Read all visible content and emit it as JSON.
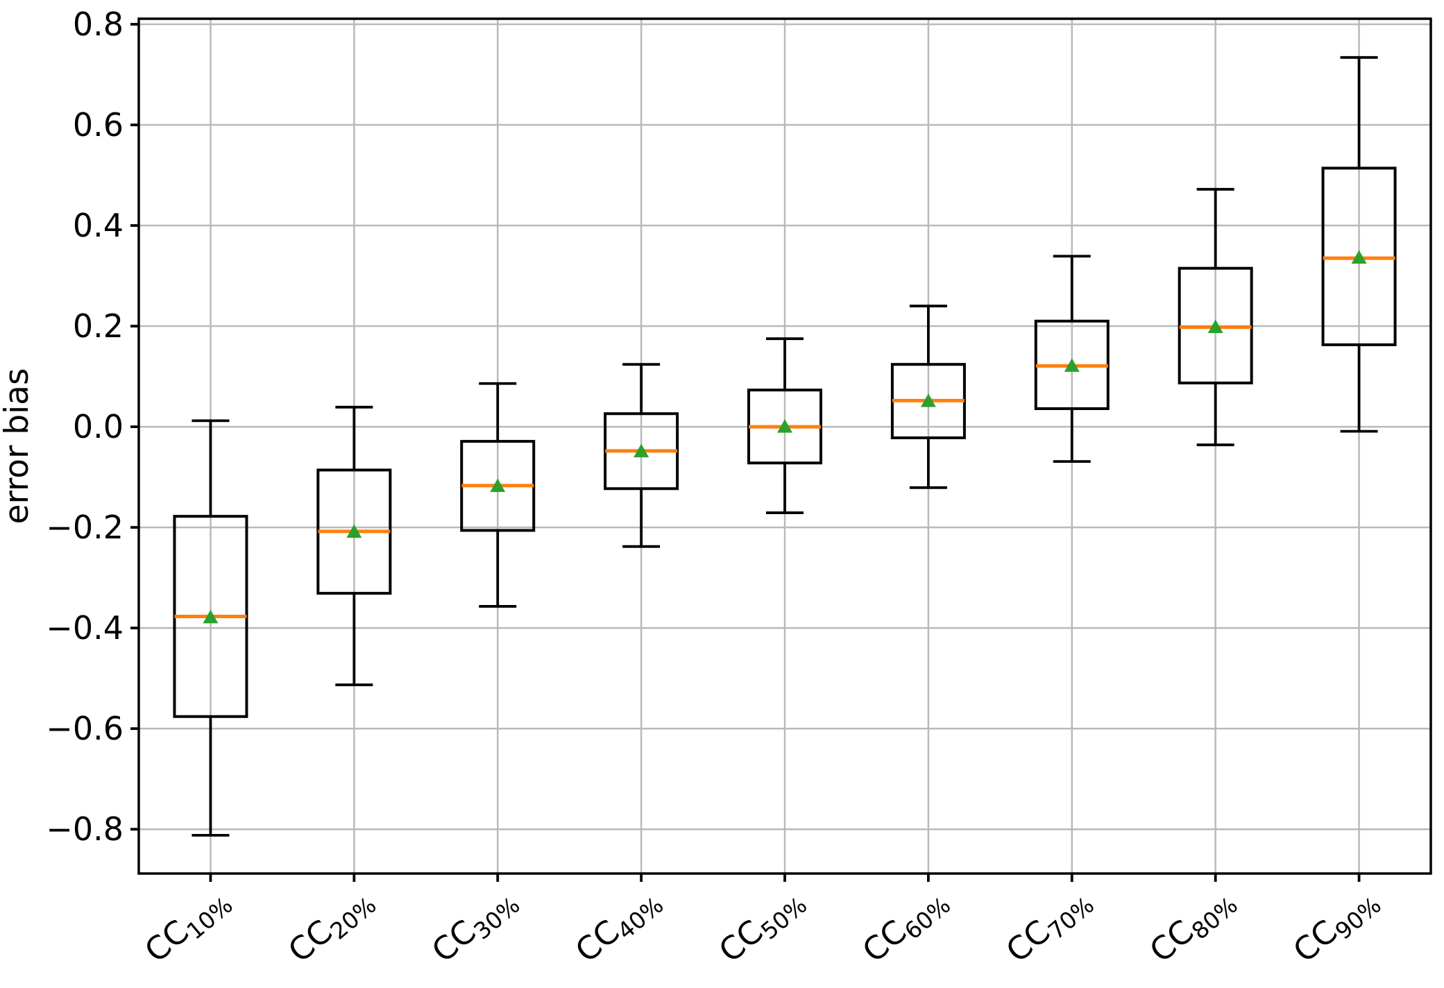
{
  "chart_data": {
    "type": "boxplot",
    "title": "",
    "xlabel": "",
    "ylabel": "error bias",
    "grid": true,
    "legend": "none",
    "ylim": [
      -0.888,
      0.811
    ],
    "yticks": [
      0.8,
      0.6,
      0.4,
      0.2,
      0.0,
      -0.2,
      -0.4,
      -0.6,
      -0.8
    ],
    "ytick_labels": [
      "0.8",
      "0.6",
      "0.4",
      "0.2",
      "0.0",
      "−0.2",
      "−0.4",
      "−0.6",
      "−0.8"
    ],
    "categories": [
      {
        "base": "CC",
        "sub": "10%",
        "label": "CC10%"
      },
      {
        "base": "CC",
        "sub": "20%",
        "label": "CC20%"
      },
      {
        "base": "CC",
        "sub": "30%",
        "label": "CC30%"
      },
      {
        "base": "CC",
        "sub": "40%",
        "label": "CC40%"
      },
      {
        "base": "CC",
        "sub": "50%",
        "label": "CC50%"
      },
      {
        "base": "CC",
        "sub": "60%",
        "label": "CC60%"
      },
      {
        "base": "CC",
        "sub": "70%",
        "label": "CC70%"
      },
      {
        "base": "CC",
        "sub": "80%",
        "label": "CC80%"
      },
      {
        "base": "CC",
        "sub": "90%",
        "label": "CC90%"
      }
    ],
    "series": [
      {
        "label": "CC10%",
        "whislo": -0.812,
        "q1": -0.576,
        "med": -0.377,
        "mean": -0.379,
        "q3": -0.178,
        "whishi": 0.012
      },
      {
        "label": "CC20%",
        "whislo": -0.513,
        "q1": -0.331,
        "med": -0.208,
        "mean": -0.209,
        "q3": -0.086,
        "whishi": 0.039
      },
      {
        "label": "CC30%",
        "whislo": -0.357,
        "q1": -0.206,
        "med": -0.117,
        "mean": -0.118,
        "q3": -0.029,
        "whishi": 0.086
      },
      {
        "label": "CC40%",
        "whislo": -0.238,
        "q1": -0.123,
        "med": -0.048,
        "mean": -0.049,
        "q3": 0.026,
        "whishi": 0.124
      },
      {
        "label": "CC50%",
        "whislo": -0.171,
        "q1": -0.072,
        "med": 0.0,
        "mean": 0.0,
        "q3": 0.073,
        "whishi": 0.175
      },
      {
        "label": "CC60%",
        "whislo": -0.121,
        "q1": -0.022,
        "med": 0.052,
        "mean": 0.051,
        "q3": 0.124,
        "whishi": 0.24
      },
      {
        "label": "CC70%",
        "whislo": -0.069,
        "q1": 0.036,
        "med": 0.121,
        "mean": 0.121,
        "q3": 0.21,
        "whishi": 0.339
      },
      {
        "label": "CC80%",
        "whislo": -0.036,
        "q1": 0.087,
        "med": 0.198,
        "mean": 0.198,
        "q3": 0.315,
        "whishi": 0.472
      },
      {
        "label": "CC90%",
        "whislo": -0.009,
        "q1": 0.163,
        "med": 0.335,
        "mean": 0.336,
        "q3": 0.514,
        "whishi": 0.734
      }
    ],
    "colors": {
      "box": "#000000",
      "whisker": "#000000",
      "median": "#ff7f0e",
      "mean_marker": "#2ca02c",
      "grid": "#b9b9b9",
      "axes": "#000000",
      "background": "#ffffff"
    }
  }
}
